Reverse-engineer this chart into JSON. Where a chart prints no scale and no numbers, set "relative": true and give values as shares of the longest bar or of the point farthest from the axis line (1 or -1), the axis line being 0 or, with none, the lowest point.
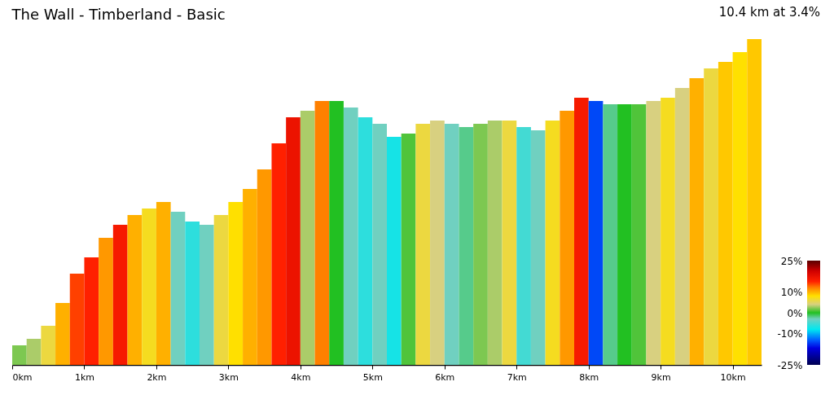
{
  "chart_data": {
    "type": "bar",
    "title": "The Wall - Timberland - Basic",
    "subtitle": "10.4 km at 3.4%",
    "relative": true,
    "x": [
      0.1,
      0.3,
      0.5,
      0.7,
      0.9,
      1.1,
      1.3,
      1.5,
      1.7,
      1.9,
      2.1,
      2.3,
      2.5,
      2.7,
      2.9,
      3.1,
      3.3,
      3.5,
      3.7,
      3.9,
      4.1,
      4.3,
      4.5,
      4.7,
      4.9,
      5.1,
      5.3,
      5.5,
      5.7,
      5.9,
      6.1,
      6.3,
      6.5,
      6.7,
      6.9,
      7.1,
      7.3,
      7.5,
      7.7,
      7.9,
      8.1,
      8.3,
      8.5,
      8.7,
      8.9,
      9.1,
      9.3,
      9.5,
      9.7,
      9.9,
      10.1,
      10.3
    ],
    "values": [
      0.06,
      0.08,
      0.12,
      0.19,
      0.28,
      0.33,
      0.39,
      0.43,
      0.46,
      0.48,
      0.5,
      0.47,
      0.44,
      0.43,
      0.46,
      0.5,
      0.54,
      0.6,
      0.68,
      0.76,
      0.78,
      0.81,
      0.81,
      0.79,
      0.76,
      0.74,
      0.7,
      0.71,
      0.74,
      0.75,
      0.74,
      0.73,
      0.74,
      0.75,
      0.75,
      0.73,
      0.72,
      0.75,
      0.78,
      0.82,
      0.81,
      0.8,
      0.8,
      0.8,
      0.81,
      0.82,
      0.85,
      0.88,
      0.91,
      0.93,
      0.96,
      1.0
    ],
    "cvalues": [
      2,
      3,
      6,
      10,
      14,
      15,
      11,
      16,
      10,
      7,
      10,
      -3,
      -6,
      -3,
      6,
      8,
      10,
      11,
      15,
      17,
      3,
      12,
      0,
      -3,
      -6,
      -3,
      -7,
      1,
      6,
      4,
      -3,
      -2,
      2,
      3,
      6,
      -5,
      -3,
      7,
      11,
      16,
      -14,
      -2,
      0,
      1,
      4,
      7,
      4,
      10,
      6,
      9,
      8,
      9
    ],
    "xlim": [
      0,
      10.4
    ],
    "xticks": [
      {
        "value": 0,
        "label": "0km"
      },
      {
        "value": 1,
        "label": "1km"
      },
      {
        "value": 2,
        "label": "2km"
      },
      {
        "value": 3,
        "label": "3km"
      },
      {
        "value": 4,
        "label": "4km"
      },
      {
        "value": 5,
        "label": "5km"
      },
      {
        "value": 6,
        "label": "6km"
      },
      {
        "value": 7,
        "label": "7km"
      },
      {
        "value": 8,
        "label": "8km"
      },
      {
        "value": 9,
        "label": "9km"
      },
      {
        "value": 10,
        "label": "10km"
      }
    ],
    "clim": [
      -25,
      25
    ],
    "cticks": [
      {
        "value": 25,
        "label": "25%"
      },
      {
        "value": 10,
        "label": "10%"
      },
      {
        "value": 0,
        "label": "0%"
      },
      {
        "value": -10,
        "label": "-10%"
      },
      {
        "value": -25,
        "label": "-25%"
      }
    ]
  }
}
